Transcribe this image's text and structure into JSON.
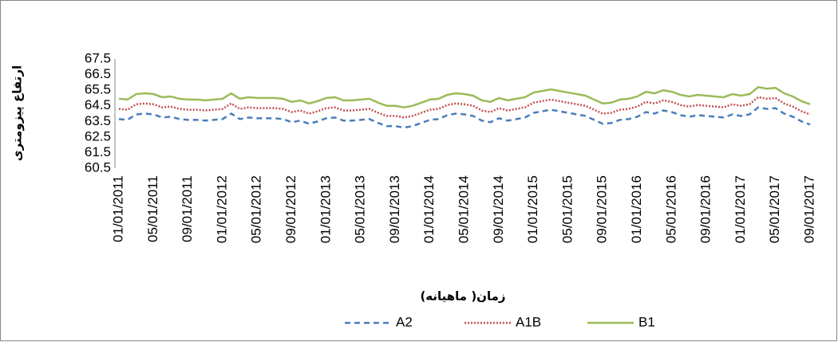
{
  "chart_data": {
    "type": "line",
    "x_label": "زمان( ماهیانه)",
    "y_label": "ارتفاع پیزومتری",
    "categories": [
      "01/01/2011",
      null,
      null,
      null,
      "05/01/2011",
      null,
      null,
      null,
      "09/01/2011",
      null,
      null,
      null,
      "01/01/2012",
      null,
      null,
      null,
      "05/01/2012",
      null,
      null,
      null,
      "09/01/2012",
      null,
      null,
      null,
      "01/01/2013",
      null,
      null,
      null,
      "05/01/2013",
      null,
      null,
      null,
      "09/01/2013",
      null,
      null,
      null,
      "01/01/2014",
      null,
      null,
      null,
      "05/01/2014",
      null,
      null,
      null,
      "09/01/2014",
      null,
      null,
      null,
      "01/01/2015",
      null,
      null,
      null,
      "05/01/2015",
      null,
      null,
      null,
      "09/01/2015",
      null,
      null,
      null,
      "01/01/2016",
      null,
      null,
      null,
      "05/01/2016",
      null,
      null,
      null,
      "09/01/2016",
      null,
      null,
      null,
      "01/01/2017",
      null,
      null,
      null,
      "05/01/2017",
      null,
      null,
      null,
      "09/01/2017"
    ],
    "series": [
      {
        "name": "A2",
        "color": "#4a7eba",
        "dash": "dashed",
        "values": [
          63.65,
          63.6,
          63.95,
          64.0,
          63.95,
          63.75,
          63.8,
          63.65,
          63.6,
          63.6,
          63.55,
          63.6,
          63.65,
          64.0,
          63.65,
          63.75,
          63.7,
          63.7,
          63.7,
          63.65,
          63.45,
          63.55,
          63.35,
          63.5,
          63.7,
          63.75,
          63.55,
          63.55,
          63.6,
          63.65,
          63.4,
          63.2,
          63.2,
          63.1,
          63.2,
          63.4,
          63.6,
          63.65,
          63.9,
          64.0,
          63.95,
          63.85,
          63.55,
          63.45,
          63.7,
          63.55,
          63.65,
          63.75,
          64.05,
          64.15,
          64.25,
          64.15,
          64.05,
          63.95,
          63.85,
          63.6,
          63.35,
          63.4,
          63.6,
          63.65,
          63.8,
          64.1,
          64.0,
          64.2,
          64.1,
          63.9,
          63.8,
          63.9,
          63.85,
          63.8,
          63.75,
          63.95,
          63.85,
          63.95,
          64.4,
          64.3,
          64.35,
          64.0,
          63.8,
          63.5,
          63.3
        ]
      },
      {
        "name": "A1B",
        "color": "#c0504d",
        "dash": "dotted",
        "values": [
          64.3,
          64.25,
          64.6,
          64.65,
          64.6,
          64.4,
          64.45,
          64.3,
          64.25,
          64.25,
          64.2,
          64.25,
          64.3,
          64.65,
          64.3,
          64.4,
          64.35,
          64.35,
          64.35,
          64.3,
          64.1,
          64.2,
          64.0,
          64.15,
          64.35,
          64.4,
          64.2,
          64.2,
          64.25,
          64.3,
          64.05,
          63.85,
          63.85,
          63.75,
          63.85,
          64.05,
          64.25,
          64.3,
          64.55,
          64.65,
          64.6,
          64.5,
          64.2,
          64.1,
          64.35,
          64.2,
          64.3,
          64.4,
          64.7,
          64.8,
          64.9,
          64.8,
          64.7,
          64.6,
          64.5,
          64.25,
          64.0,
          64.05,
          64.25,
          64.3,
          64.45,
          64.75,
          64.65,
          64.85,
          64.75,
          64.55,
          64.45,
          64.55,
          64.5,
          64.45,
          64.4,
          64.6,
          64.5,
          64.6,
          65.05,
          64.95,
          65.0,
          64.65,
          64.45,
          64.15,
          63.95
        ]
      },
      {
        "name": "B1",
        "color": "#9bbb59",
        "dash": "solid",
        "values": [
          64.95,
          64.9,
          65.25,
          65.3,
          65.25,
          65.05,
          65.1,
          64.95,
          64.9,
          64.9,
          64.85,
          64.9,
          64.95,
          65.3,
          64.95,
          65.05,
          65.0,
          65.0,
          65.0,
          64.95,
          64.75,
          64.85,
          64.65,
          64.8,
          65.0,
          65.05,
          64.85,
          64.85,
          64.9,
          64.95,
          64.7,
          64.5,
          64.5,
          64.4,
          64.5,
          64.7,
          64.9,
          64.95,
          65.2,
          65.3,
          65.25,
          65.15,
          64.85,
          64.75,
          65.0,
          64.85,
          64.95,
          65.05,
          65.35,
          65.45,
          65.55,
          65.45,
          65.35,
          65.25,
          65.15,
          64.9,
          64.65,
          64.7,
          64.9,
          64.95,
          65.1,
          65.4,
          65.3,
          65.5,
          65.4,
          65.2,
          65.1,
          65.2,
          65.15,
          65.1,
          65.05,
          65.25,
          65.15,
          65.25,
          65.7,
          65.6,
          65.65,
          65.3,
          65.1,
          64.8,
          64.6
        ]
      }
    ],
    "ylim": [
      60.5,
      67.5
    ],
    "yticks": [
      60.5,
      61.5,
      62.5,
      63.5,
      64.5,
      65.5,
      66.5,
      67.5
    ],
    "grid": false,
    "legend": "bottom"
  }
}
